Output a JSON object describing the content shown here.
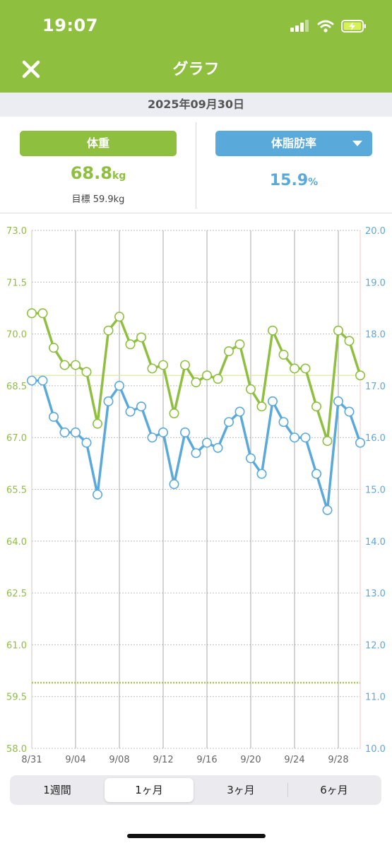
{
  "status": {
    "time": "19:07"
  },
  "header": {
    "title": "グラフ",
    "close_icon": "close-icon"
  },
  "date": "2025年09月30日",
  "weight": {
    "button_label": "体重",
    "value": "68.8",
    "unit": "kg",
    "goal": "目標 59.9kg"
  },
  "body_fat": {
    "button_label": "体脂肪率",
    "value": "15.9",
    "unit": "%"
  },
  "colors": {
    "accent_green": "#8fbf3f",
    "accent_blue": "#5aa9db"
  },
  "period_tabs": [
    "1週間",
    "1ヶ月",
    "3ヶ月",
    "6ヶ月"
  ],
  "selected_period": "1ヶ月",
  "chart_data": {
    "type": "line",
    "x": [
      "8/31",
      "9/01",
      "9/02",
      "9/03",
      "9/04",
      "9/05",
      "9/06",
      "9/07",
      "9/08",
      "9/09",
      "9/10",
      "9/11",
      "9/12",
      "9/13",
      "9/14",
      "9/15",
      "9/16",
      "9/17",
      "9/18",
      "9/19",
      "9/20",
      "9/21",
      "9/22",
      "9/23",
      "9/24",
      "9/25",
      "9/26",
      "9/27",
      "9/28",
      "9/29",
      "9/30"
    ],
    "x_tick_labels": [
      "8/31",
      "9/04",
      "9/08",
      "9/12",
      "9/16",
      "9/20",
      "9/24",
      "9/28"
    ],
    "series": [
      {
        "name": "体重",
        "axis": "left",
        "unit": "kg",
        "color": "#8fbf3f",
        "values": [
          70.6,
          70.6,
          69.6,
          69.1,
          69.1,
          68.9,
          67.4,
          70.1,
          70.5,
          69.7,
          69.9,
          69.0,
          69.1,
          67.7,
          69.1,
          68.6,
          68.8,
          68.7,
          69.5,
          69.7,
          68.4,
          67.9,
          70.1,
          69.4,
          69.0,
          69.0,
          67.9,
          66.9,
          70.1,
          69.8,
          68.8
        ]
      },
      {
        "name": "体脂肪率",
        "axis": "right",
        "unit": "%",
        "color": "#5aa9db",
        "values": [
          17.1,
          17.1,
          16.4,
          16.1,
          16.1,
          15.9,
          14.9,
          16.7,
          17.0,
          16.5,
          16.6,
          16.0,
          16.1,
          15.1,
          16.1,
          15.7,
          15.9,
          15.8,
          16.3,
          16.5,
          15.6,
          15.3,
          16.7,
          16.3,
          16.0,
          16.0,
          15.3,
          14.6,
          16.7,
          16.5,
          15.9
        ]
      }
    ],
    "y_left": {
      "range": [
        58.0,
        73.0
      ],
      "ticks": [
        "58.0",
        "59.5",
        "61.0",
        "62.5",
        "64.0",
        "65.5",
        "67.0",
        "68.5",
        "70.0",
        "71.5",
        "73.0"
      ]
    },
    "y_right": {
      "range": [
        10.0,
        20.0
      ],
      "ticks": [
        "10.0",
        "11.0",
        "12.0",
        "13.0",
        "14.0",
        "15.0",
        "16.0",
        "17.0",
        "18.0",
        "19.0",
        "20.0"
      ]
    },
    "reference_lines": {
      "goal_weight": 59.9,
      "current_weight": 68.8
    },
    "grid": true
  }
}
